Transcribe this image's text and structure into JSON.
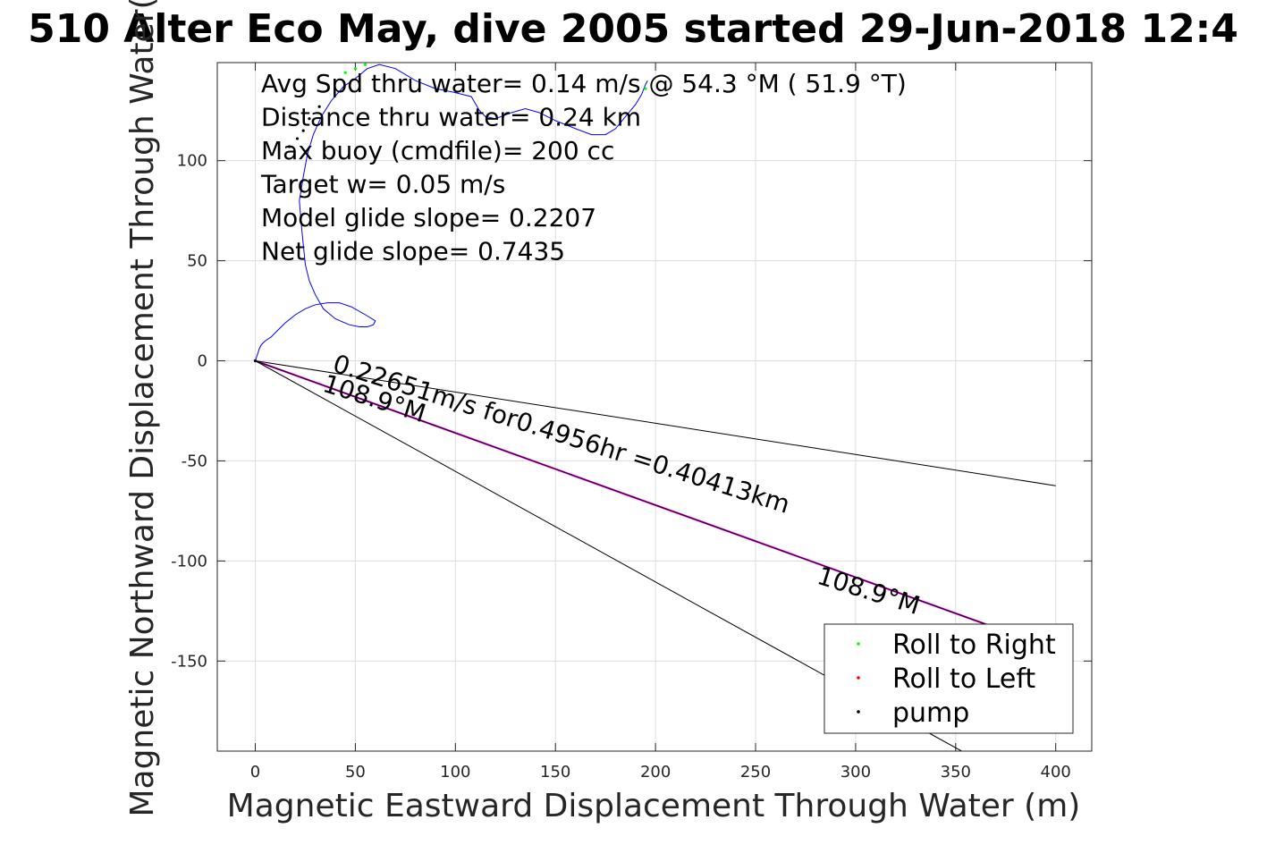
{
  "chart_data": {
    "type": "line",
    "title": "510 Alter Eco May, dive 2005 started 29-Jun-2018 12:4",
    "xlabel": "Magnetic Eastward Displacement Through Water (m)",
    "ylabel": "Magnetic Northward Displacement Through Water(",
    "xlim": [
      -19,
      418
    ],
    "ylim": [
      -195,
      149
    ],
    "xticks": [
      0,
      50,
      100,
      150,
      200,
      250,
      300,
      350,
      400
    ],
    "yticks": [
      -150,
      -100,
      -50,
      0,
      50,
      100
    ],
    "xtick_labels": [
      "0",
      "50",
      "100",
      "150",
      "200",
      "250",
      "300",
      "350",
      "400"
    ],
    "ytick_labels": [
      "-150",
      "-100",
      "-50",
      "0",
      "50",
      "100"
    ],
    "grid": true,
    "annotations": [
      "Avg Spd thru water=  0.14 m/s @  54.3 °M ( 51.9 °T)",
      "Distance thru water=  0.24 km",
      "Max buoy (cmdfile)= 200 cc",
      "Target w= 0.05 m/s",
      "Model glide slope= 0.2207",
      "Net glide slope= 0.7435"
    ],
    "line_labels": [
      {
        "text": "0.22651m/s for0.4956hr =0.40413km",
        "x": 38,
        "y": -5,
        "angle_deg": 17.4
      },
      {
        "text": "108.9°M",
        "x": 33,
        "y": -15,
        "angle_deg": 17.4
      },
      {
        "text": "108.9°M",
        "x": 280,
        "y": -111,
        "angle_deg": 17.4
      }
    ],
    "series": [
      {
        "name": "track",
        "color": "#0000ff",
        "x": [
          0,
          1,
          2,
          3,
          5,
          8,
          11,
          15,
          20,
          25,
          30,
          36,
          42,
          48,
          55,
          60,
          59,
          56,
          52,
          47,
          40,
          34,
          30,
          27,
          25,
          24,
          23,
          22,
          24,
          26,
          29,
          33,
          38,
          44,
          50,
          56,
          62,
          70,
          80,
          90,
          100,
          108,
          112,
          115,
          120,
          128,
          135,
          142,
          150,
          160,
          168,
          175,
          180,
          185,
          190,
          193,
          195,
          196
        ],
        "y": [
          0,
          3,
          6,
          8,
          10,
          12,
          15,
          19,
          23,
          26,
          28,
          29,
          29,
          27,
          23,
          20,
          18,
          17,
          17,
          18,
          21,
          26,
          33,
          40,
          48,
          58,
          68,
          80,
          92,
          103,
          113,
          122,
          130,
          137,
          141,
          146,
          148,
          146,
          140,
          136,
          134,
          132,
          125,
          122,
          121,
          124,
          126,
          124,
          120,
          116,
          113,
          113,
          116,
          122,
          128,
          133,
          138,
          140
        ]
      },
      {
        "name": "heading line",
        "color": "#ff00ff",
        "x": [
          0,
          400
        ],
        "y": [
          0,
          -144.2
        ]
      },
      {
        "name": "",
        "color": "#000000",
        "x": [
          0,
          400
        ],
        "y": [
          0,
          -144.2
        ]
      },
      {
        "name": "",
        "color": "#000000",
        "x": [
          0,
          400
        ],
        "y": [
          0,
          -62.4
        ]
      },
      {
        "name": "",
        "color": "#000000",
        "x": [
          0,
          353
        ],
        "y": [
          0,
          -195
        ]
      }
    ],
    "markers": {
      "roll_right": {
        "x": [
          45,
          50,
          55,
          195
        ],
        "y": [
          144,
          146,
          148,
          136
        ]
      },
      "roll_left": {
        "x": [
          0
        ],
        "y": [
          0
        ]
      },
      "pump": {
        "x": [
          0,
          17,
          21,
          24,
          27,
          32
        ],
        "y": [
          0,
          107,
          111,
          115,
          121,
          127
        ]
      }
    },
    "legend": {
      "location": "bottom-right",
      "entries": [
        {
          "label": "Roll to Right",
          "color": "#00ff00"
        },
        {
          "label": "Roll to Left",
          "color": "#ff0000"
        },
        {
          "label": "pump",
          "color": "#000000"
        }
      ]
    }
  }
}
